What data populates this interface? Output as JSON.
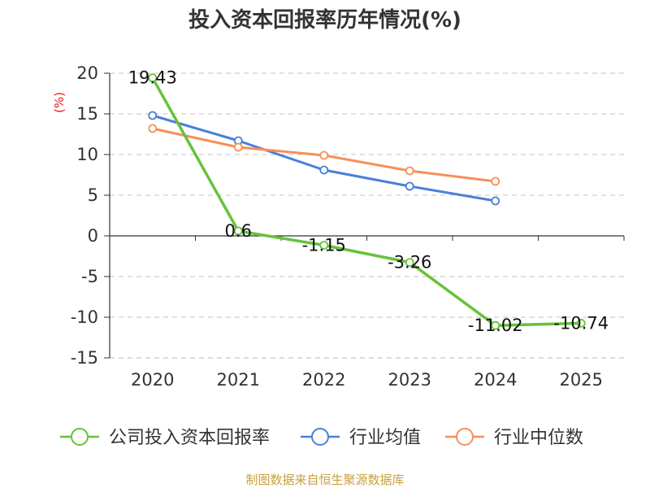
{
  "chart_data": {
    "type": "line",
    "title": "投入资本回报率历年情况(%)",
    "ylabel": "(%)",
    "xlabel": "",
    "categories": [
      "2020",
      "2021",
      "2022",
      "2023",
      "2024",
      "2025"
    ],
    "ylim": [
      -15,
      20
    ],
    "yticks": [
      20,
      15,
      10,
      5,
      0,
      -5,
      -10,
      -15
    ],
    "grid": true,
    "legend_position": "bottom",
    "series": [
      {
        "name": "公司投入资本回报率",
        "color": "#67c23a",
        "values": [
          19.43,
          0.6,
          -1.15,
          -3.26,
          -11.02,
          -10.74
        ],
        "labels": [
          "19.43",
          "0.6",
          "-1.15",
          "-3.26",
          "-11.02",
          "-10.74"
        ]
      },
      {
        "name": "行业均值",
        "color": "#4a7fd9",
        "values": [
          14.8,
          11.7,
          8.1,
          6.1,
          4.3,
          null
        ]
      },
      {
        "name": "行业中位数",
        "color": "#f59058",
        "values": [
          13.2,
          10.9,
          9.9,
          8.0,
          6.7,
          null
        ]
      }
    ]
  },
  "source": "制图数据来自恒生聚源数据库"
}
